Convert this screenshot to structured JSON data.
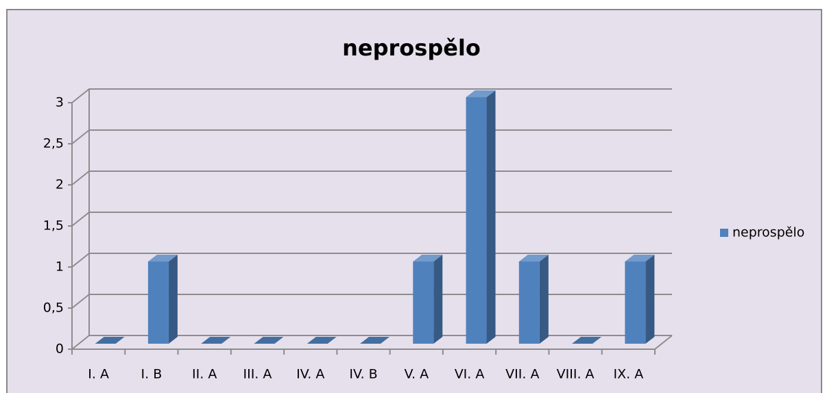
{
  "chart_data": {
    "type": "bar3d",
    "title": "neprospělo",
    "categories": [
      "I. A",
      "I. B",
      "II. A",
      "III. A",
      "IV. A",
      "IV. B",
      "V. A",
      "VI. A",
      "VII. A",
      "VIII. A",
      "IX. A"
    ],
    "series": [
      {
        "name": "neprospělo",
        "color": "#4f81bd",
        "values": [
          0,
          1,
          0,
          0,
          0,
          0,
          1,
          3,
          1,
          0,
          1
        ]
      }
    ],
    "ylim": [
      0,
      3
    ],
    "yticks": [
      0,
      {
        "value": 0.5,
        "label": "0,5"
      },
      1,
      {
        "value": 1.5,
        "label": "1,5"
      },
      2,
      {
        "value": 2.5,
        "label": "2,5"
      },
      3
    ],
    "grid": true,
    "legend": "right"
  }
}
